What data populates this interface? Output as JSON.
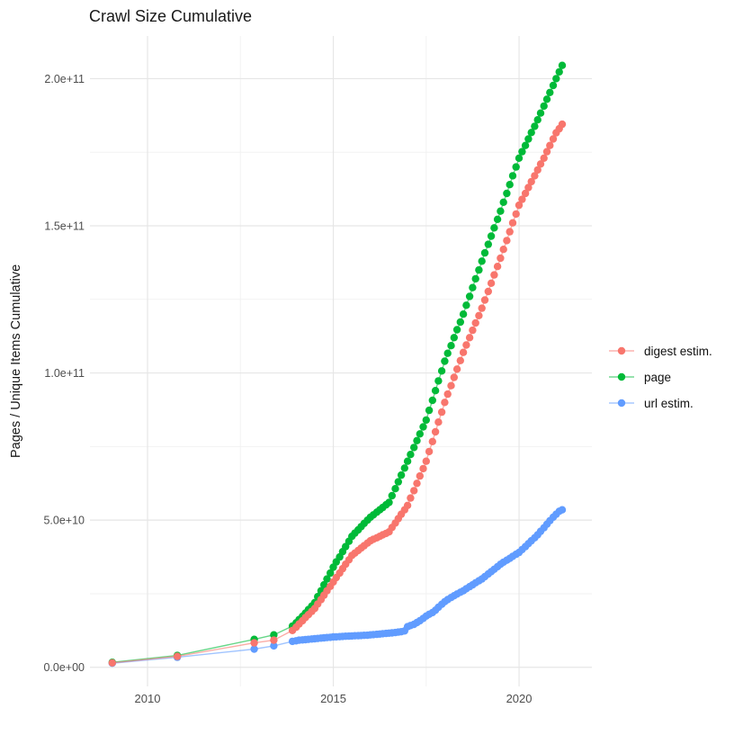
{
  "chart_data": {
    "type": "line",
    "title": "Crawl Size Cumulative",
    "ylabel": "Pages / Unique Items Cumulative",
    "xlabel": "",
    "value_unit": "1e9 (billions); y tick labels use scientific notation",
    "legend_position": "right",
    "grid": "on",
    "xlim": [
      2008.45,
      2021.96
    ],
    "ylim": [
      -6.5,
      214.5
    ],
    "x_ticks": [
      {
        "value": 2010,
        "label": "2010"
      },
      {
        "value": 2015,
        "label": "2015"
      },
      {
        "value": 2020,
        "label": "2020"
      }
    ],
    "x_minor": [
      2012.5,
      2017.5
    ],
    "y_ticks": [
      {
        "value": 0,
        "label": "0.0e+00"
      },
      {
        "value": 50,
        "label": "5.0e+10"
      },
      {
        "value": 100,
        "label": "1.0e+11"
      },
      {
        "value": 150,
        "label": "1.5e+11"
      },
      {
        "value": 200,
        "label": "2.0e+11"
      }
    ],
    "y_minor": [
      25,
      75,
      125,
      175
    ],
    "draw_order": [
      1,
      2,
      0
    ],
    "series": [
      {
        "name": "digest estim.",
        "color": "#F8766D",
        "points": [
          [
            2009.05,
            1.5
          ],
          [
            2010.8,
            3.7
          ],
          [
            2012.87,
            8.3
          ],
          [
            2013.4,
            9.2
          ],
          [
            2013.9,
            12.5
          ],
          [
            2014.0,
            13.6
          ],
          [
            2014.08,
            14.7
          ],
          [
            2014.17,
            15.8
          ],
          [
            2014.25,
            16.9
          ],
          [
            2014.33,
            17.9
          ],
          [
            2014.42,
            19.0
          ],
          [
            2014.5,
            20.0
          ],
          [
            2014.58,
            21.5
          ],
          [
            2014.67,
            23.0
          ],
          [
            2014.75,
            24.5
          ],
          [
            2014.83,
            26.0
          ],
          [
            2014.92,
            27.5
          ],
          [
            2015.0,
            29.0
          ],
          [
            2015.08,
            30.5
          ],
          [
            2015.17,
            32.0
          ],
          [
            2015.25,
            33.5
          ],
          [
            2015.33,
            35.0
          ],
          [
            2015.42,
            36.5
          ],
          [
            2015.5,
            38.0
          ],
          [
            2015.58,
            38.8
          ],
          [
            2015.67,
            39.7
          ],
          [
            2015.75,
            40.5
          ],
          [
            2015.83,
            41.3
          ],
          [
            2015.92,
            42.2
          ],
          [
            2016.0,
            43.0
          ],
          [
            2016.08,
            43.5
          ],
          [
            2016.17,
            44.0
          ],
          [
            2016.25,
            44.5
          ],
          [
            2016.33,
            45.0
          ],
          [
            2016.42,
            45.5
          ],
          [
            2016.5,
            46.0
          ],
          [
            2016.58,
            47.5
          ],
          [
            2016.67,
            49.0
          ],
          [
            2016.75,
            50.5
          ],
          [
            2016.83,
            52.0
          ],
          [
            2016.92,
            53.5
          ],
          [
            2017.0,
            55.0
          ],
          [
            2017.08,
            57.5
          ],
          [
            2017.17,
            60.0
          ],
          [
            2017.25,
            62.5
          ],
          [
            2017.33,
            65.0
          ],
          [
            2017.42,
            67.5
          ],
          [
            2017.5,
            70.0
          ],
          [
            2017.58,
            73.3
          ],
          [
            2017.67,
            76.7
          ],
          [
            2017.75,
            80.0
          ],
          [
            2017.83,
            83.3
          ],
          [
            2017.92,
            86.7
          ],
          [
            2018.0,
            90.0
          ],
          [
            2018.08,
            92.8
          ],
          [
            2018.17,
            95.7
          ],
          [
            2018.25,
            98.5
          ],
          [
            2018.33,
            101.3
          ],
          [
            2018.42,
            104.2
          ],
          [
            2018.5,
            107.0
          ],
          [
            2018.58,
            109.5
          ],
          [
            2018.67,
            112.0
          ],
          [
            2018.75,
            114.5
          ],
          [
            2018.83,
            117.0
          ],
          [
            2018.92,
            119.5
          ],
          [
            2019.0,
            122.0
          ],
          [
            2019.08,
            124.8
          ],
          [
            2019.17,
            127.7
          ],
          [
            2019.25,
            130.5
          ],
          [
            2019.33,
            133.3
          ],
          [
            2019.42,
            136.2
          ],
          [
            2019.5,
            139.0
          ],
          [
            2019.58,
            142.0
          ],
          [
            2019.67,
            145.0
          ],
          [
            2019.75,
            148.0
          ],
          [
            2019.83,
            151.0
          ],
          [
            2019.92,
            154.0
          ],
          [
            2020.0,
            157.0
          ],
          [
            2020.08,
            159.0
          ],
          [
            2020.17,
            161.0
          ],
          [
            2020.25,
            163.0
          ],
          [
            2020.33,
            165.0
          ],
          [
            2020.42,
            167.0
          ],
          [
            2020.5,
            169.0
          ],
          [
            2020.58,
            171.0
          ],
          [
            2020.67,
            173.0
          ],
          [
            2020.75,
            175.2
          ],
          [
            2020.83,
            177.3
          ],
          [
            2020.92,
            179.5
          ],
          [
            2021.0,
            181.6
          ],
          [
            2021.08,
            183.0
          ],
          [
            2021.16,
            184.5
          ]
        ]
      },
      {
        "name": "page",
        "color": "#00BA38",
        "points": [
          [
            2009.05,
            1.7
          ],
          [
            2010.8,
            4.0
          ],
          [
            2012.87,
            9.5
          ],
          [
            2013.4,
            11.0
          ],
          [
            2013.9,
            14.0
          ],
          [
            2014.0,
            15.1
          ],
          [
            2014.08,
            16.2
          ],
          [
            2014.17,
            17.3
          ],
          [
            2014.25,
            18.4
          ],
          [
            2014.33,
            19.6
          ],
          [
            2014.42,
            20.8
          ],
          [
            2014.5,
            22.0
          ],
          [
            2014.58,
            24.0
          ],
          [
            2014.67,
            26.0
          ],
          [
            2014.75,
            28.0
          ],
          [
            2014.83,
            30.0
          ],
          [
            2014.92,
            32.0
          ],
          [
            2015.0,
            34.0
          ],
          [
            2015.08,
            35.8
          ],
          [
            2015.17,
            37.5
          ],
          [
            2015.25,
            39.3
          ],
          [
            2015.33,
            41.0
          ],
          [
            2015.42,
            42.8
          ],
          [
            2015.5,
            44.5
          ],
          [
            2015.58,
            45.6
          ],
          [
            2015.67,
            46.7
          ],
          [
            2015.75,
            47.8
          ],
          [
            2015.83,
            48.9
          ],
          [
            2015.92,
            50.0
          ],
          [
            2016.0,
            51.0
          ],
          [
            2016.08,
            51.8
          ],
          [
            2016.17,
            52.7
          ],
          [
            2016.25,
            53.5
          ],
          [
            2016.33,
            54.3
          ],
          [
            2016.42,
            55.2
          ],
          [
            2016.5,
            56.0
          ],
          [
            2016.58,
            58.3
          ],
          [
            2016.67,
            60.7
          ],
          [
            2016.75,
            63.0
          ],
          [
            2016.83,
            65.3
          ],
          [
            2016.92,
            67.7
          ],
          [
            2017.0,
            70.0
          ],
          [
            2017.08,
            72.3
          ],
          [
            2017.17,
            74.7
          ],
          [
            2017.25,
            77.0
          ],
          [
            2017.33,
            79.3
          ],
          [
            2017.42,
            81.7
          ],
          [
            2017.5,
            84.0
          ],
          [
            2017.58,
            87.3
          ],
          [
            2017.67,
            90.7
          ],
          [
            2017.75,
            94.0
          ],
          [
            2017.83,
            97.3
          ],
          [
            2017.92,
            100.7
          ],
          [
            2018.0,
            104.0
          ],
          [
            2018.08,
            106.7
          ],
          [
            2018.17,
            109.3
          ],
          [
            2018.25,
            112.0
          ],
          [
            2018.33,
            114.7
          ],
          [
            2018.42,
            117.3
          ],
          [
            2018.5,
            120.0
          ],
          [
            2018.58,
            123.0
          ],
          [
            2018.67,
            126.0
          ],
          [
            2018.75,
            129.0
          ],
          [
            2018.83,
            132.0
          ],
          [
            2018.92,
            135.0
          ],
          [
            2019.0,
            138.0
          ],
          [
            2019.08,
            140.8
          ],
          [
            2019.17,
            143.7
          ],
          [
            2019.25,
            146.5
          ],
          [
            2019.33,
            149.3
          ],
          [
            2019.42,
            152.2
          ],
          [
            2019.5,
            155.0
          ],
          [
            2019.58,
            158.0
          ],
          [
            2019.67,
            161.0
          ],
          [
            2019.75,
            164.0
          ],
          [
            2019.83,
            167.0
          ],
          [
            2019.92,
            170.0
          ],
          [
            2020.0,
            173.0
          ],
          [
            2020.08,
            175.2
          ],
          [
            2020.17,
            177.3
          ],
          [
            2020.25,
            179.5
          ],
          [
            2020.33,
            181.7
          ],
          [
            2020.42,
            183.8
          ],
          [
            2020.5,
            186.0
          ],
          [
            2020.58,
            188.3
          ],
          [
            2020.67,
            190.7
          ],
          [
            2020.75,
            193.0
          ],
          [
            2020.83,
            195.3
          ],
          [
            2020.92,
            197.7
          ],
          [
            2021.0,
            200.0
          ],
          [
            2021.08,
            202.3
          ],
          [
            2021.16,
            204.5
          ]
        ]
      },
      {
        "name": "url estim.",
        "color": "#619CFF",
        "points": [
          [
            2009.05,
            1.4
          ],
          [
            2010.8,
            3.4
          ],
          [
            2012.87,
            6.2
          ],
          [
            2013.4,
            7.3
          ],
          [
            2013.9,
            8.8
          ],
          [
            2014.0,
            9.0
          ],
          [
            2014.08,
            9.2
          ],
          [
            2014.17,
            9.3
          ],
          [
            2014.25,
            9.4
          ],
          [
            2014.33,
            9.5
          ],
          [
            2014.42,
            9.6
          ],
          [
            2014.5,
            9.7
          ],
          [
            2014.58,
            9.8
          ],
          [
            2014.67,
            9.9
          ],
          [
            2014.75,
            10.0
          ],
          [
            2014.83,
            10.1
          ],
          [
            2014.92,
            10.2
          ],
          [
            2015.0,
            10.3
          ],
          [
            2015.08,
            10.35
          ],
          [
            2015.17,
            10.4
          ],
          [
            2015.25,
            10.5
          ],
          [
            2015.33,
            10.55
          ],
          [
            2015.42,
            10.6
          ],
          [
            2015.5,
            10.65
          ],
          [
            2015.58,
            10.7
          ],
          [
            2015.67,
            10.75
          ],
          [
            2015.75,
            10.8
          ],
          [
            2015.83,
            10.85
          ],
          [
            2015.92,
            10.9
          ],
          [
            2016.0,
            11.0
          ],
          [
            2016.08,
            11.1
          ],
          [
            2016.17,
            11.2
          ],
          [
            2016.25,
            11.3
          ],
          [
            2016.33,
            11.4
          ],
          [
            2016.42,
            11.5
          ],
          [
            2016.5,
            11.6
          ],
          [
            2016.58,
            11.7
          ],
          [
            2016.67,
            11.8
          ],
          [
            2016.75,
            11.95
          ],
          [
            2016.83,
            12.1
          ],
          [
            2016.92,
            12.35
          ],
          [
            2017.0,
            13.8
          ],
          [
            2017.08,
            14.2
          ],
          [
            2017.17,
            14.6
          ],
          [
            2017.25,
            15.2
          ],
          [
            2017.33,
            15.8
          ],
          [
            2017.42,
            16.6
          ],
          [
            2017.5,
            17.4
          ],
          [
            2017.58,
            18.0
          ],
          [
            2017.67,
            18.6
          ],
          [
            2017.75,
            19.4
          ],
          [
            2017.83,
            20.4
          ],
          [
            2017.92,
            21.4
          ],
          [
            2018.0,
            22.3
          ],
          [
            2018.08,
            23.0
          ],
          [
            2018.17,
            23.7
          ],
          [
            2018.25,
            24.3
          ],
          [
            2018.33,
            24.9
          ],
          [
            2018.42,
            25.5
          ],
          [
            2018.5,
            26.0
          ],
          [
            2018.58,
            26.7
          ],
          [
            2018.67,
            27.4
          ],
          [
            2018.75,
            28.0
          ],
          [
            2018.83,
            28.7
          ],
          [
            2018.92,
            29.4
          ],
          [
            2019.0,
            30.0
          ],
          [
            2019.08,
            30.8
          ],
          [
            2019.17,
            31.7
          ],
          [
            2019.25,
            32.5
          ],
          [
            2019.33,
            33.3
          ],
          [
            2019.42,
            34.2
          ],
          [
            2019.5,
            35.0
          ],
          [
            2019.58,
            35.7
          ],
          [
            2019.67,
            36.4
          ],
          [
            2019.75,
            37.0
          ],
          [
            2019.83,
            37.7
          ],
          [
            2019.92,
            38.4
          ],
          [
            2020.0,
            39.0
          ],
          [
            2020.08,
            40.0
          ],
          [
            2020.17,
            41.0
          ],
          [
            2020.25,
            42.0
          ],
          [
            2020.33,
            43.0
          ],
          [
            2020.42,
            44.0
          ],
          [
            2020.5,
            45.0
          ],
          [
            2020.58,
            46.2
          ],
          [
            2020.67,
            47.4
          ],
          [
            2020.75,
            48.6
          ],
          [
            2020.83,
            49.8
          ],
          [
            2020.92,
            51.0
          ],
          [
            2021.0,
            52.0
          ],
          [
            2021.08,
            53.0
          ],
          [
            2021.16,
            53.5
          ]
        ]
      }
    ]
  },
  "style": {
    "grid_major_color": "#e6e6e6",
    "grid_minor_color": "#f2f2f2",
    "tick_label_color": "#4d4d4d",
    "text_color": "#1a1a1a",
    "background": "#ffffff"
  }
}
